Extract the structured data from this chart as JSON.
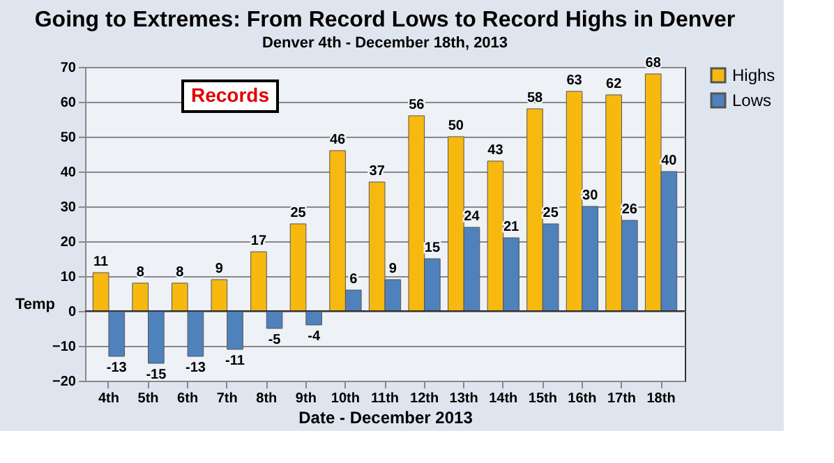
{
  "chart_data": {
    "type": "bar",
    "title": "Going to Extremes:  From Record Lows to Record Highs in Denver",
    "subtitle": "Denver 4th - December 18th, 2013",
    "xlabel": "Date - December 2013",
    "ylabel": "Temp",
    "categories": [
      "4th",
      "5th",
      "6th",
      "7th",
      "8th",
      "9th",
      "10th",
      "11th",
      "12th",
      "13th",
      "14th",
      "15th",
      "16th",
      "17th",
      "18th"
    ],
    "series": [
      {
        "name": "Highs",
        "color": "#f7b90f",
        "values": [
          11,
          8,
          8,
          9,
          17,
          25,
          46,
          37,
          56,
          50,
          43,
          58,
          63,
          62,
          68
        ]
      },
      {
        "name": "Lows",
        "color": "#4f81bd",
        "values": [
          -13,
          -15,
          -13,
          -11,
          -5,
          -4,
          6,
          9,
          15,
          24,
          21,
          25,
          30,
          26,
          40
        ]
      }
    ],
    "ylim": [
      -20,
      70
    ],
    "yticks": [
      -20,
      -10,
      0,
      10,
      20,
      30,
      40,
      50,
      60,
      70
    ],
    "grid": "y",
    "legend": "right",
    "data_labels": true,
    "annotations": [
      "Records"
    ]
  }
}
